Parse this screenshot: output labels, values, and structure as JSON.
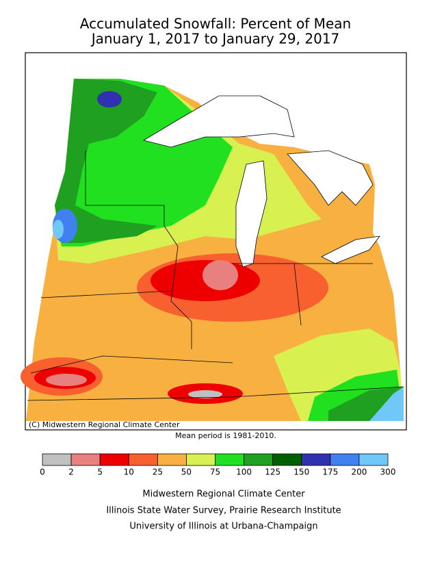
{
  "header": {
    "title": "Accumulated Snowfall: Percent of Mean",
    "subtitle": "January 1, 2017 to January 29, 2017"
  },
  "map": {
    "copyright": "(C) Midwestern Regional Climate Center",
    "note": "Mean period is 1981-2010."
  },
  "legend": {
    "ticks": [
      0,
      2,
      5,
      10,
      25,
      50,
      75,
      100,
      125,
      150,
      175,
      200,
      300
    ],
    "colors": [
      "#c0c0c0",
      "#e88080",
      "#ee0000",
      "#f86030",
      "#f8b040",
      "#d8f050",
      "#20e020",
      "#20a020",
      "#006000",
      "#3030b0",
      "#4080f0",
      "#70c8f8"
    ]
  },
  "footer": {
    "lines": [
      "Midwestern Regional Climate Center",
      "Illinois State Water Survey, Prairie Research Institute",
      "University of Illinois at Urbana-Champaign"
    ]
  }
}
